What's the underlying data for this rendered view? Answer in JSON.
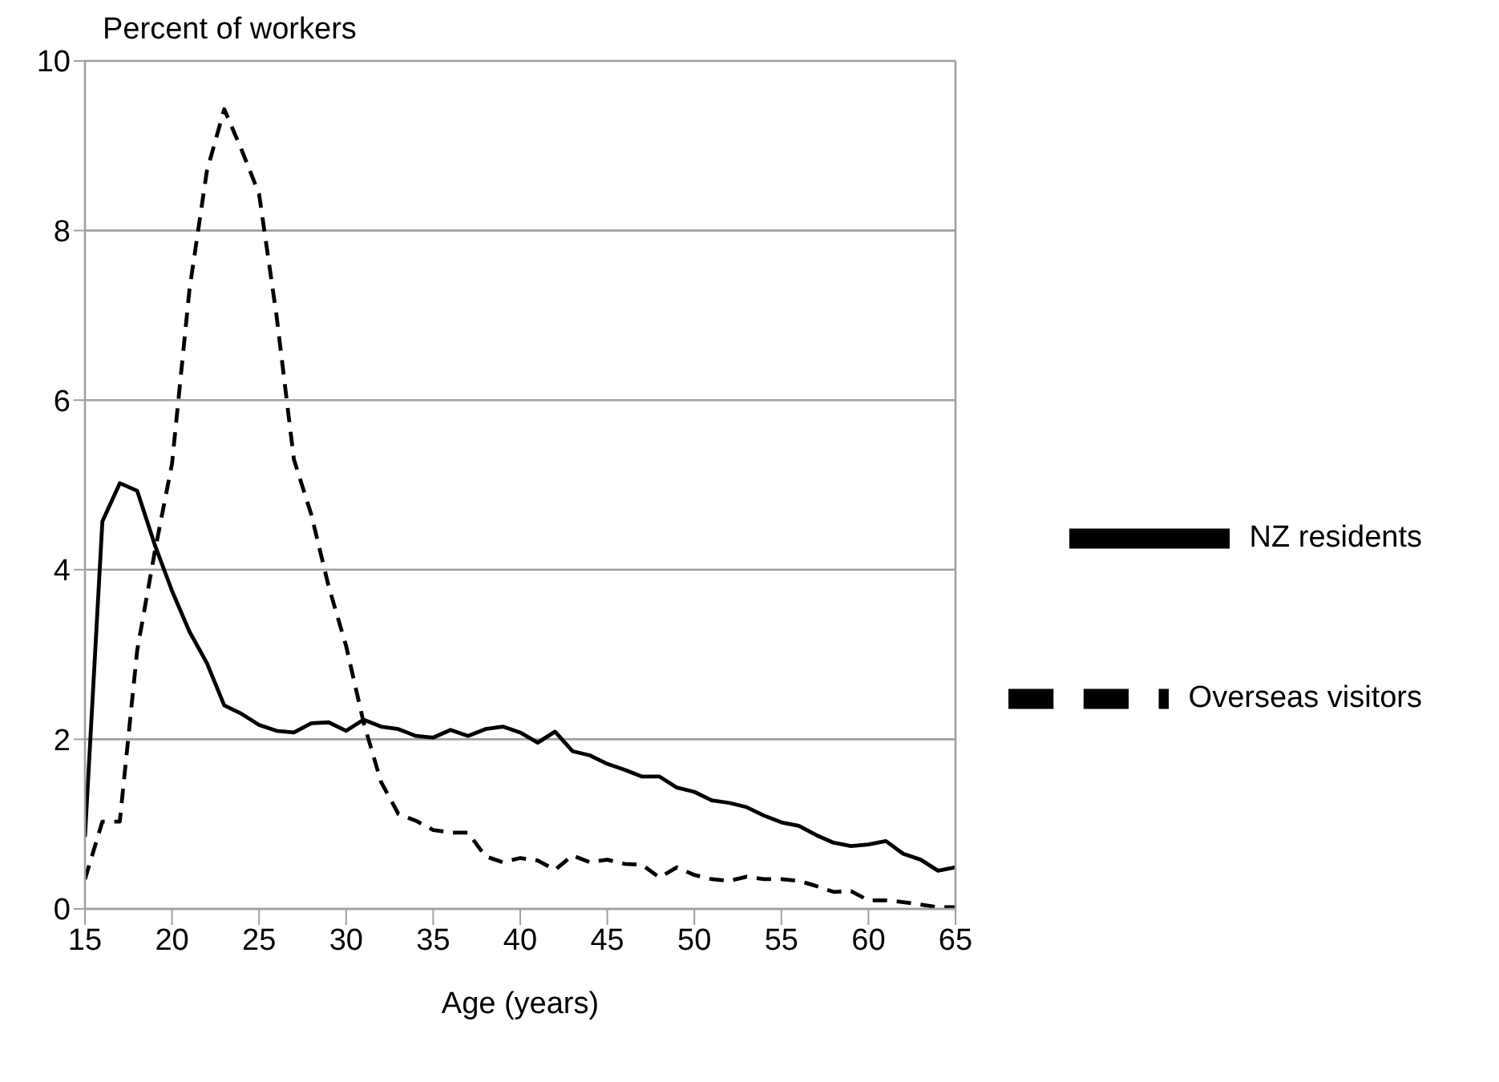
{
  "chart_data": {
    "type": "line",
    "ylabel": "Percent of workers",
    "xlabel": "Age (years)",
    "x": [
      15,
      16,
      17,
      18,
      19,
      20,
      21,
      22,
      23,
      24,
      25,
      26,
      27,
      28,
      29,
      30,
      31,
      32,
      33,
      34,
      35,
      36,
      37,
      38,
      39,
      40,
      41,
      42,
      43,
      44,
      45,
      46,
      47,
      48,
      49,
      50,
      51,
      52,
      53,
      54,
      55,
      56,
      57,
      58,
      59,
      60,
      61,
      62,
      63,
      64,
      65
    ],
    "xlim": [
      15,
      65
    ],
    "xticks": [
      15,
      20,
      25,
      30,
      35,
      40,
      45,
      50,
      55,
      60,
      65
    ],
    "ylim": [
      0,
      10
    ],
    "yticks": [
      0,
      2,
      4,
      6,
      8,
      10
    ],
    "grid": "y",
    "legend": "right",
    "marker": "none",
    "series": [
      {
        "name": "NZ residents",
        "color": "#000000",
        "line_style": "solid",
        "values": [
          0.85,
          4.57,
          5.02,
          4.93,
          4.3,
          3.75,
          3.27,
          2.9,
          2.4,
          2.3,
          2.17,
          2.1,
          2.08,
          2.19,
          2.2,
          2.1,
          2.23,
          2.15,
          2.12,
          2.04,
          2.02,
          2.11,
          2.04,
          2.12,
          2.15,
          2.08,
          1.96,
          2.09,
          1.86,
          1.81,
          1.71,
          1.64,
          1.56,
          1.56,
          1.43,
          1.38,
          1.28,
          1.25,
          1.2,
          1.1,
          1.02,
          0.98,
          0.87,
          0.78,
          0.74,
          0.76,
          0.8,
          0.65,
          0.58,
          0.45,
          0.49
        ]
      },
      {
        "name": "Overseas visitors",
        "color": "#000000",
        "line_style": "dashed",
        "values": [
          0.35,
          1.03,
          1.03,
          3.05,
          4.2,
          5.25,
          7.3,
          8.7,
          9.43,
          8.95,
          8.43,
          7.0,
          5.3,
          4.65,
          3.8,
          3.1,
          2.2,
          1.5,
          1.12,
          1.04,
          0.93,
          0.9,
          0.9,
          0.62,
          0.55,
          0.6,
          0.57,
          0.46,
          0.63,
          0.55,
          0.58,
          0.53,
          0.52,
          0.37,
          0.49,
          0.4,
          0.35,
          0.33,
          0.38,
          0.35,
          0.35,
          0.33,
          0.27,
          0.2,
          0.21,
          0.1,
          0.1,
          0.08,
          0.05,
          0.02,
          0.02
        ]
      }
    ]
  }
}
